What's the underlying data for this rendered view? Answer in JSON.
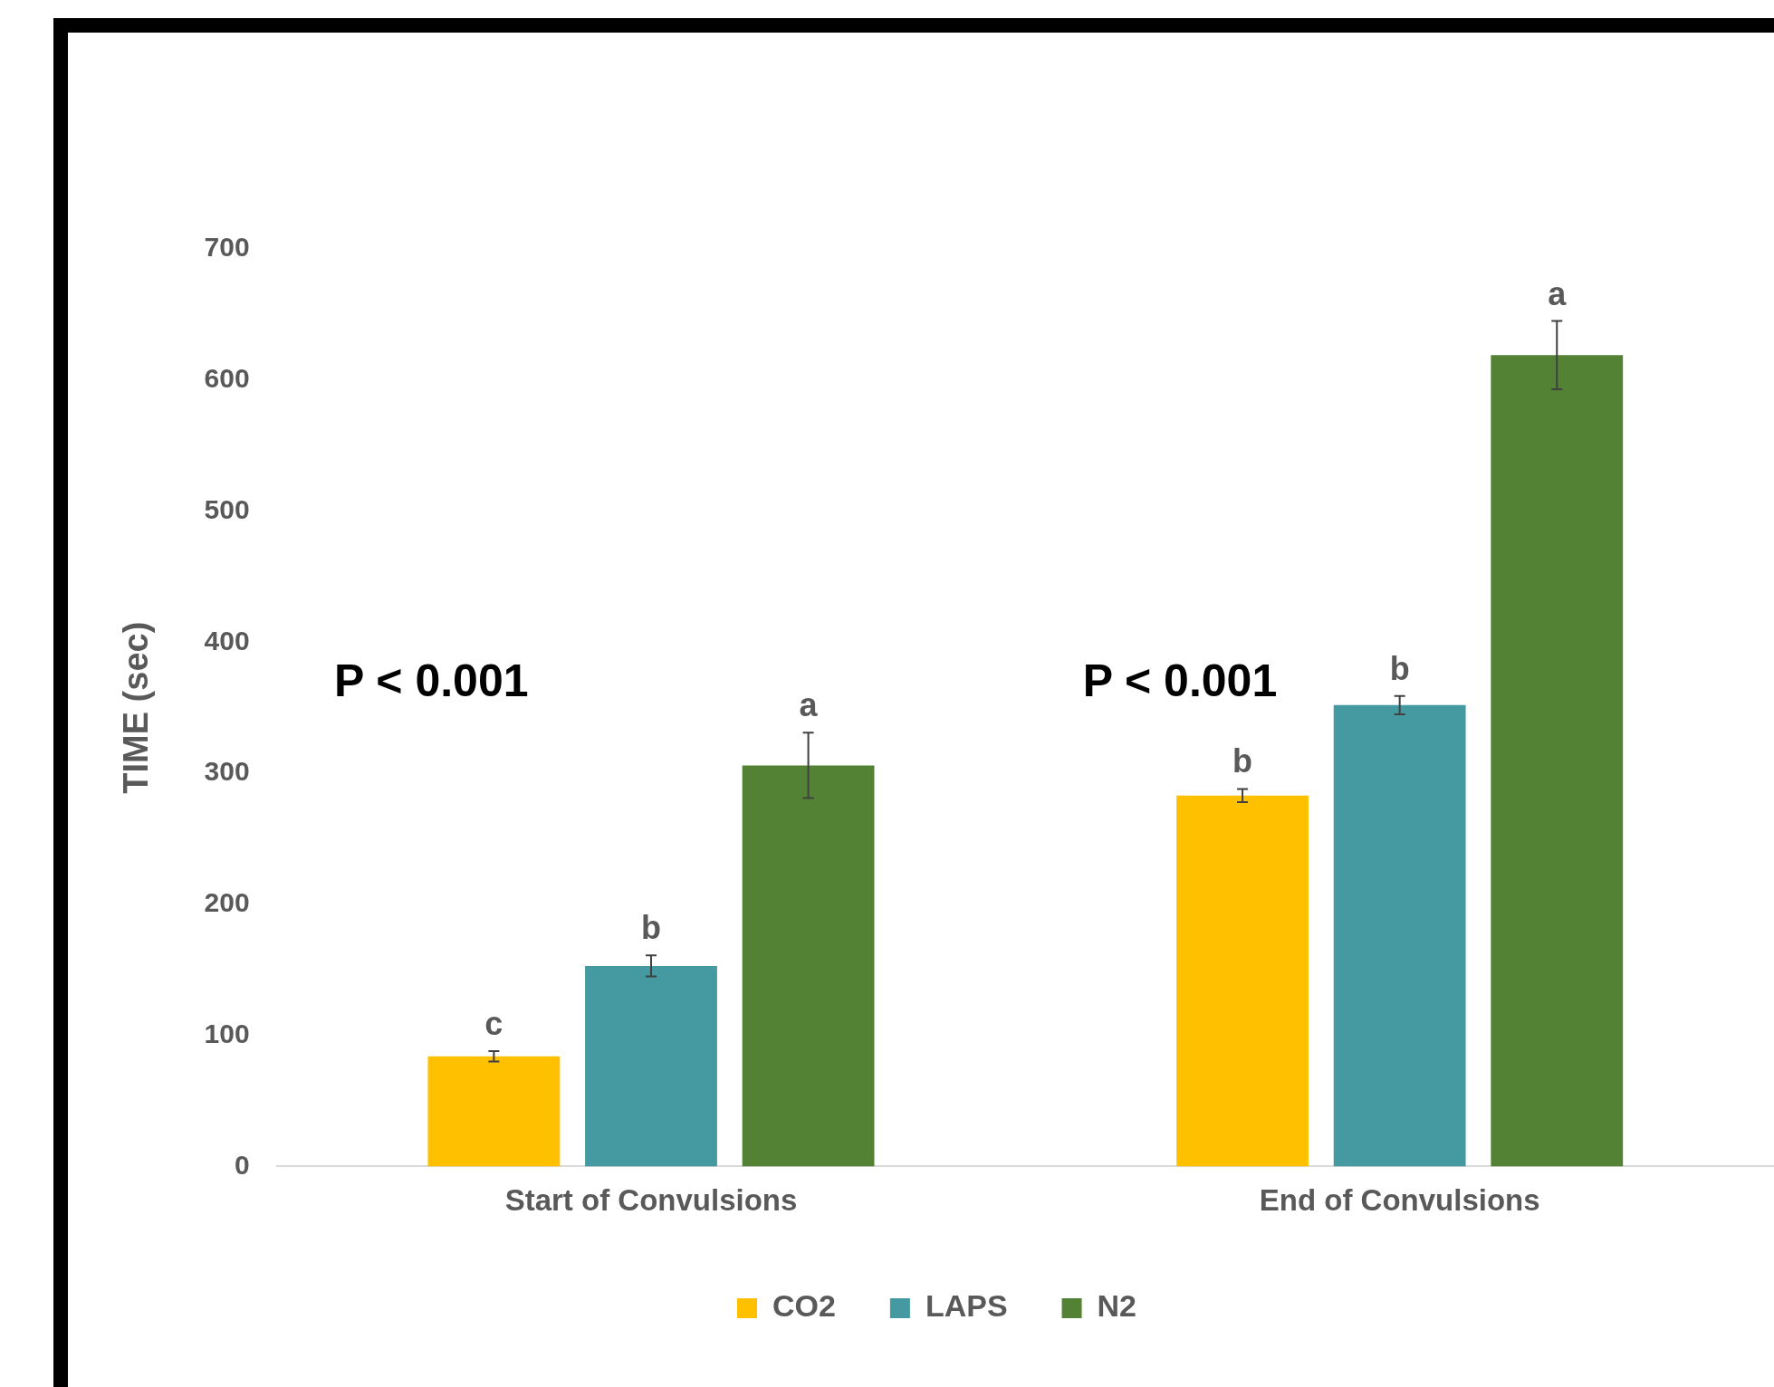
{
  "chart_data": {
    "type": "bar",
    "ylabel": "TIME (sec)",
    "categories": [
      "Start of Convulsions",
      "End of Convulsions"
    ],
    "series": [
      {
        "name": "CO2",
        "color": "#ffc000",
        "values": [
          84,
          283
        ],
        "errors": [
          4,
          5
        ],
        "value_labels": [
          "c",
          "b"
        ]
      },
      {
        "name": "LAPS",
        "color": "#4599a0",
        "values": [
          153,
          352
        ],
        "errors": [
          8,
          7
        ],
        "value_labels": [
          "b",
          "b"
        ]
      },
      {
        "name": "N2",
        "color": "#548235",
        "values": [
          306,
          619
        ],
        "errors": [
          25,
          26
        ],
        "value_labels": [
          "a",
          "a"
        ]
      }
    ],
    "ylim": [
      0,
      700
    ],
    "yticks": [
      0,
      100,
      200,
      300,
      400,
      500,
      600,
      700
    ],
    "grid": false,
    "legend": "bottom",
    "annotations": [
      "P < 0.001",
      "P < 0.001"
    ]
  }
}
